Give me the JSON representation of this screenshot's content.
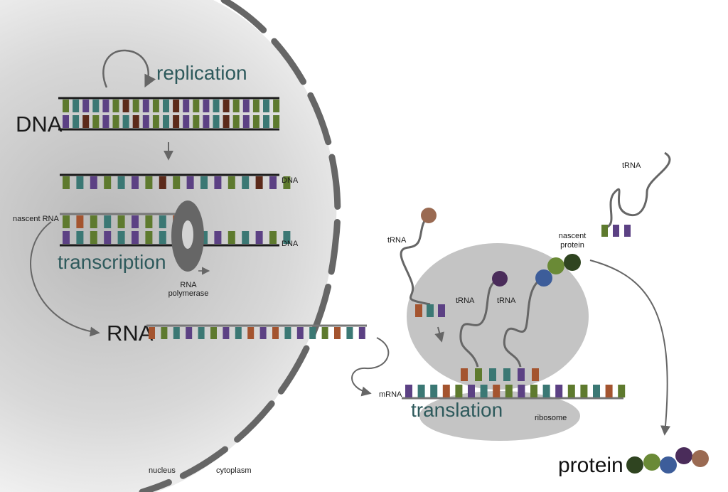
{
  "labels": {
    "replication": "replication",
    "dna_main": "DNA",
    "dna_small_top": "DNA",
    "dna_small_bottom": "DNA",
    "nascent_rna": "nascent RNA",
    "transcription": "transcription",
    "rna_polymerase_line1": "RNA",
    "rna_polymerase_line2": "polymerase",
    "rna": "RNA",
    "nucleus": "nucleus",
    "cytoplasm": "cytoplasm",
    "trna_top_right": "tRNA",
    "trna_left": "tRNA",
    "trna_mid1": "tRNA",
    "trna_mid2": "tRNA",
    "nascent_protein_line1": "nascent",
    "nascent_protein_line2": "protein",
    "mrna": "mRNA",
    "translation": "translation",
    "ribosome": "ribosome",
    "protein": "protein"
  },
  "colors": {
    "green": "#5e7a2e",
    "teal": "#3b7874",
    "purple": "#5c4184",
    "rust": "#a4542f",
    "maroon": "#5c2a1a",
    "dark_green": "#2f4420",
    "blue": "#3d5d9a",
    "dark_purple": "#4a2c5a",
    "brown": "#9a6a52",
    "protein_green": "#6a8a36",
    "nucleus_gray": "#c4c4c4",
    "ribosome_gray": "#c4c4c4",
    "membrane": "#666666"
  },
  "sequences": {
    "dna_top_strand": [
      "green",
      "teal",
      "purple",
      "teal",
      "purple",
      "green",
      "maroon",
      "green",
      "purple",
      "green",
      "teal",
      "maroon",
      "purple",
      "green",
      "purple",
      "teal",
      "maroon",
      "green",
      "purple",
      "green",
      "teal",
      "green"
    ],
    "dna_bottom_strand": [
      "purple",
      "teal",
      "maroon",
      "green",
      "purple",
      "green",
      "teal",
      "maroon",
      "purple",
      "green",
      "teal",
      "maroon",
      "purple",
      "green",
      "purple",
      "teal",
      "maroon",
      "green",
      "purple",
      "green",
      "teal",
      "green"
    ],
    "dna_unwound_top": [
      "green",
      "teal",
      "purple",
      "green",
      "teal",
      "purple",
      "green",
      "maroon",
      "green",
      "purple",
      "teal",
      "purple",
      "green",
      "teal",
      "maroon",
      "purple",
      "green"
    ],
    "nascent_rna_strand": [
      "green",
      "rust",
      "green",
      "teal",
      "green",
      "purple",
      "green",
      "teal",
      "rust"
    ],
    "dna_unwound_bottom": [
      "purple",
      "teal",
      "green",
      "purple",
      "teal",
      "purple",
      "green",
      "teal",
      "purple",
      "green",
      "teal",
      "purple",
      "green",
      "teal",
      "purple",
      "green",
      "teal"
    ],
    "rna_strand": [
      "rust",
      "green",
      "teal",
      "purple",
      "teal",
      "green",
      "purple",
      "teal",
      "rust",
      "purple",
      "rust",
      "teal",
      "purple",
      "teal",
      "green",
      "rust",
      "teal",
      "purple"
    ],
    "mrna_strand": [
      "purple",
      "teal",
      "teal",
      "rust",
      "green",
      "purple",
      "teal",
      "rust",
      "green",
      "purple",
      "green",
      "teal",
      "purple",
      "green",
      "green",
      "teal",
      "rust",
      "green"
    ],
    "trna_left_anticodon": [
      "rust",
      "teal",
      "purple"
    ],
    "trna_mid1_anticodon": [
      "rust",
      "green",
      "teal"
    ],
    "trna_mid2_anticodon": [
      "teal",
      "purple",
      "rust"
    ],
    "trna_top_right_anticodon": [
      "green",
      "purple",
      "purple"
    ],
    "protein_beads": [
      "dark_green",
      "protein_green",
      "blue",
      "dark_purple",
      "brown"
    ],
    "nascent_protein_beads": [
      "blue",
      "protein_green",
      "dark_green"
    ]
  }
}
